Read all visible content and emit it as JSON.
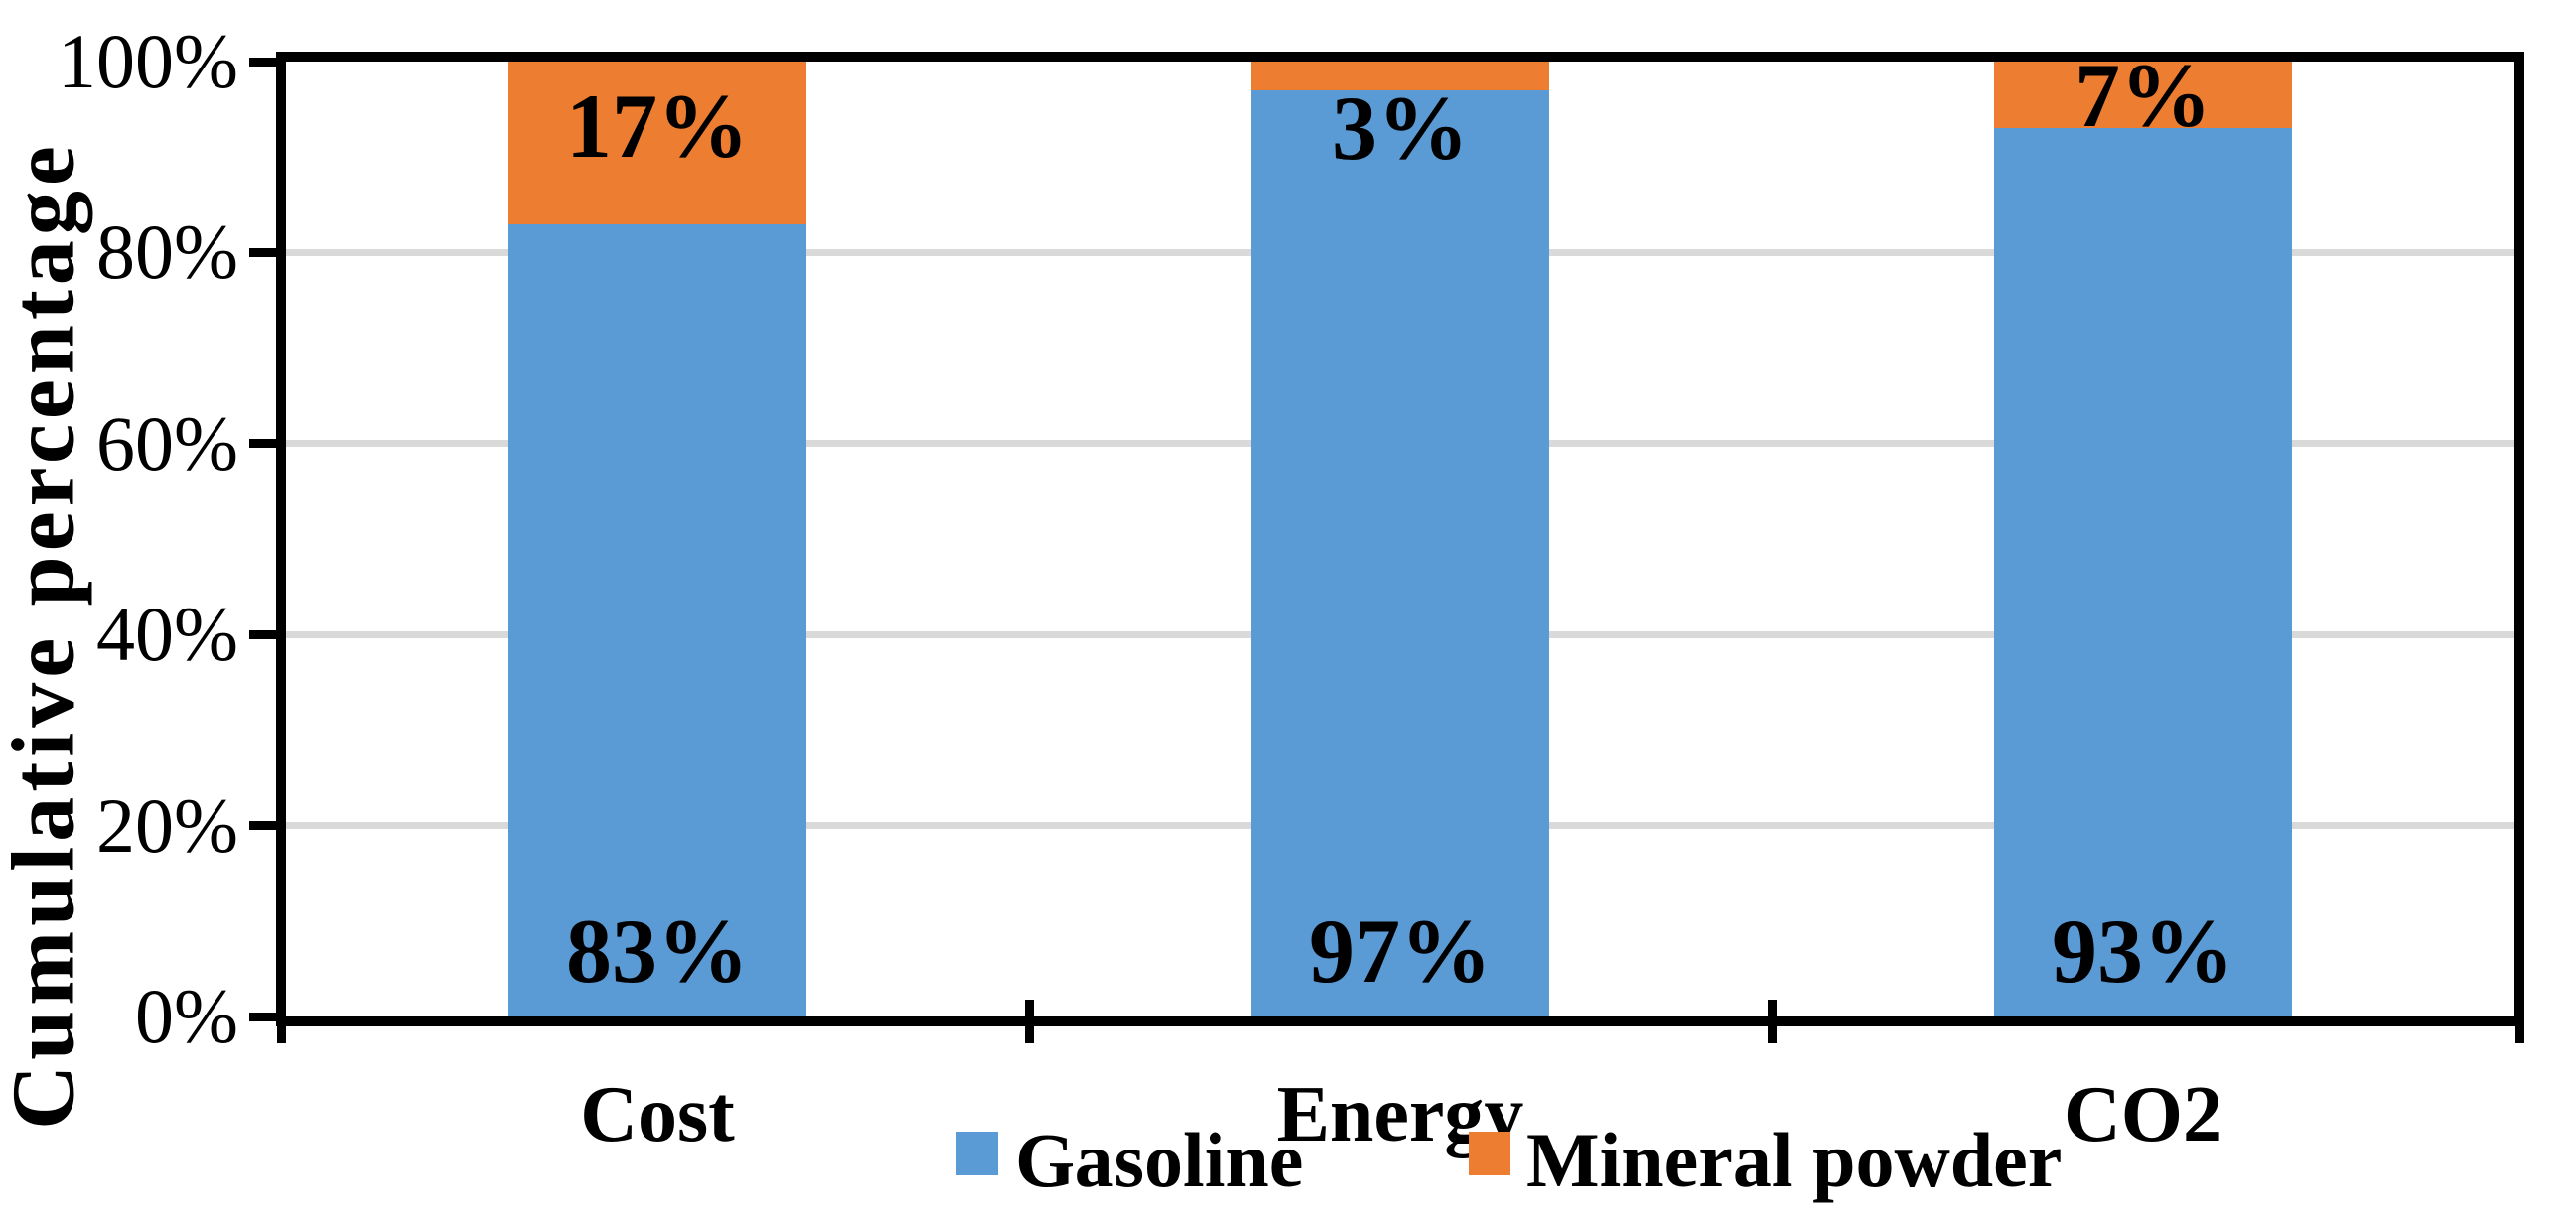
{
  "chart_data": {
    "type": "bar",
    "stacked": true,
    "categories": [
      "Cost",
      "Energy",
      "CO2"
    ],
    "series": [
      {
        "name": "Gasoline",
        "color": "#5B9BD5",
        "values": [
          83,
          97,
          93
        ],
        "labels": [
          "83%",
          "97%",
          "93%"
        ]
      },
      {
        "name": "Mineral powder",
        "color": "#ED7D31",
        "values": [
          17,
          3,
          7
        ],
        "labels": [
          "17%",
          "3%",
          "7%"
        ]
      }
    ],
    "ylabel": "Cumulative percentage",
    "yticks": [
      "100%",
      "80%",
      "60%",
      "40%",
      "20%",
      "0%"
    ],
    "ylim": [
      0,
      100
    ],
    "grid": true,
    "gridline_color": "#D9D9D9",
    "axis_color": "#000000",
    "background_color": "#FFFFFF",
    "legend_position": "bottom"
  }
}
